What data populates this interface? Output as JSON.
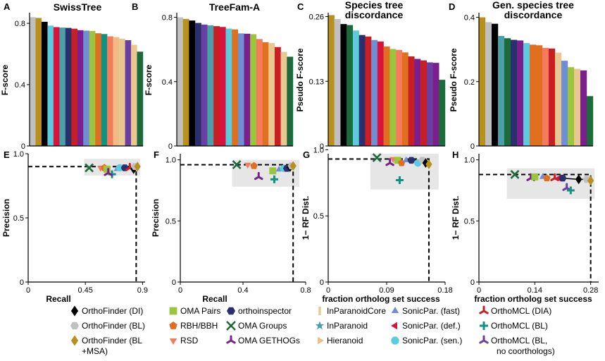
{
  "panel_labels": [
    "A",
    "B",
    "C",
    "D",
    "E",
    "F",
    "G",
    "H"
  ],
  "legend": [
    {
      "name": "OrthoFinder (DI)",
      "color": "#000000",
      "marker": "diamond"
    },
    {
      "name": "OrthoFinder (BL)",
      "color": "#c0c0c0",
      "marker": "hexagon"
    },
    {
      "name": "OrthoFinder (BL +MSA)",
      "color": "#b8901c",
      "marker": "diamond"
    },
    {
      "name": "OMA Pairs",
      "color": "#9bc53d",
      "marker": "square"
    },
    {
      "name": "RBH/BBH",
      "color": "#e07020",
      "marker": "pentagon"
    },
    {
      "name": "RSD",
      "color": "#f47c5c",
      "marker": "triangle-down"
    },
    {
      "name": "orthoinspector",
      "color": "#2a2f6e",
      "marker": "hexagon"
    },
    {
      "name": "OMA Groups",
      "color": "#1c6b3a",
      "marker": "x"
    },
    {
      "name": "OMA GETHOGs",
      "color": "#7a1f8c",
      "marker": "tri"
    },
    {
      "name": "InParanoidCore",
      "color": "#e8c890",
      "marker": "bar"
    },
    {
      "name": "InParanoid",
      "color": "#4aa0a8",
      "marker": "star"
    },
    {
      "name": "Hieranoid",
      "color": "#f0bc84",
      "marker": "triangle-right"
    },
    {
      "name": "SonicPar. (fast)",
      "color": "#6e8fd4",
      "marker": "triangle-up"
    },
    {
      "name": "SonicPar. (def.)",
      "color": "#d8143c",
      "marker": "triangle-left"
    },
    {
      "name": "SonicPar. (sen.)",
      "color": "#5ccbe0",
      "marker": "circle"
    },
    {
      "name": "OrthoMCL (DIA)",
      "color": "#c81e24",
      "marker": "tri"
    },
    {
      "name": "OrthoMCL (BL)",
      "color": "#129080",
      "marker": "plus"
    },
    {
      "name": "OrthoMCL (BL, no coorthologs)",
      "color": "#6a3fa0",
      "marker": "tri"
    }
  ],
  "chart_data": [
    {
      "type": "bar",
      "panel": "A",
      "title": "SwissTree",
      "ylabel": "F-score",
      "ylim": [
        0,
        0.86
      ],
      "yticks": [
        "0",
        "0.4",
        "0.8"
      ],
      "ytick_values": [
        0,
        0.4,
        0.8
      ],
      "bars": [
        {
          "method": "OrthoFinder (BL)",
          "value": 0.84
        },
        {
          "method": "OrthoFinder (BL +MSA)",
          "value": 0.835
        },
        {
          "method": "OrthoFinder (DI)",
          "value": 0.81
        },
        {
          "method": "SonicPar. (sen.)",
          "value": 0.785
        },
        {
          "method": "SonicPar. (def.)",
          "value": 0.775
        },
        {
          "method": "InParanoid",
          "value": 0.772
        },
        {
          "method": "orthoinspector",
          "value": 0.77
        },
        {
          "method": "OrthoMCL (DIA)",
          "value": 0.765
        },
        {
          "method": "OMA GETHOGs",
          "value": 0.755
        },
        {
          "method": "SonicPar. (fast)",
          "value": 0.752
        },
        {
          "method": "OMA Pairs",
          "value": 0.75
        },
        {
          "method": "RBH/BBH",
          "value": 0.735
        },
        {
          "method": "OrthoMCL (BL)",
          "value": 0.73
        },
        {
          "method": "RSD",
          "value": 0.715
        },
        {
          "method": "Hieranoid",
          "value": 0.71
        },
        {
          "method": "InParanoidCore",
          "value": 0.7
        },
        {
          "method": "OrthoMCL (BL, no coorthologs)",
          "value": 0.69
        },
        {
          "method": "InParanoidCore",
          "value": 0.66
        },
        {
          "method": "OMA Groups",
          "value": 0.615
        }
      ]
    },
    {
      "type": "bar",
      "panel": "B",
      "title": "TreeFam-A",
      "ylabel": "F-score",
      "ylim": [
        0,
        0.82
      ],
      "yticks": [
        "0",
        "0.4",
        "0.8"
      ],
      "ytick_values": [
        0,
        0.4,
        0.8
      ],
      "bars": [
        {
          "method": "OrthoFinder (BL)",
          "value": 0.8
        },
        {
          "method": "OrthoFinder (BL +MSA)",
          "value": 0.79
        },
        {
          "method": "OrthoFinder (DI)",
          "value": 0.78
        },
        {
          "method": "orthoinspector",
          "value": 0.765
        },
        {
          "method": "OrthoMCL (BL, no coorthologs)",
          "value": 0.755
        },
        {
          "method": "InParanoid",
          "value": 0.75
        },
        {
          "method": "OrthoMCL (DIA)",
          "value": 0.745
        },
        {
          "method": "SonicPar. (def.)",
          "value": 0.74
        },
        {
          "method": "SonicPar. (sen.)",
          "value": 0.73
        },
        {
          "method": "RBH/BBH",
          "value": 0.725
        },
        {
          "method": "SonicPar. (fast)",
          "value": 0.7
        },
        {
          "method": "OMA GETHOGs",
          "value": 0.698
        },
        {
          "method": "OMA Pairs",
          "value": 0.695
        },
        {
          "method": "RSD",
          "value": 0.665
        },
        {
          "method": "RBH/BBH",
          "value": 0.645
        },
        {
          "method": "InParanoidCore",
          "value": 0.64
        },
        {
          "method": "OrthoMCL (DIA)",
          "value": 0.615
        },
        {
          "method": "InParanoidCore",
          "value": 0.585
        },
        {
          "method": "OMA Groups",
          "value": 0.555
        }
      ]
    },
    {
      "type": "bar",
      "panel": "C",
      "title": "Species tree discordance",
      "ylabel": "Pseudo F-score",
      "ylim": [
        0,
        0.265
      ],
      "yticks": [
        "0",
        "0.13",
        "0.26"
      ],
      "ytick_values": [
        0,
        0.13,
        0.26
      ],
      "bars": [
        {
          "method": "OrthoFinder (BL +MSA)",
          "value": 0.263
        },
        {
          "method": "OrthoFinder (BL)",
          "value": 0.255
        },
        {
          "method": "OrthoFinder (DI)",
          "value": 0.245
        },
        {
          "method": "OMA Groups",
          "value": 0.243
        },
        {
          "method": "SonicPar. (sen.)",
          "value": 0.232
        },
        {
          "method": "orthoinspector",
          "value": 0.223
        },
        {
          "method": "OrthoMCL (DIA)",
          "value": 0.22
        },
        {
          "method": "SonicPar. (fast)",
          "value": 0.213
        },
        {
          "method": "SonicPar. (def.)",
          "value": 0.21
        },
        {
          "method": "RBH/BBH",
          "value": 0.2
        },
        {
          "method": "OMA Pairs",
          "value": 0.195
        },
        {
          "method": "RSD",
          "value": 0.193
        },
        {
          "method": "RBH/BBH",
          "value": 0.188
        },
        {
          "method": "OrthoMCL (DIA)",
          "value": 0.18
        },
        {
          "method": "OMA GETHOGs",
          "value": 0.175
        },
        {
          "method": "OrthoMCL (DIA)",
          "value": 0.172
        },
        {
          "method": "OrthoMCL (BL, no coorthologs)",
          "value": 0.168
        },
        {
          "method": "OMA GETHOGs",
          "value": 0.167
        },
        {
          "method": "OMA Groups",
          "value": 0.133
        }
      ]
    },
    {
      "type": "bar",
      "panel": "D",
      "title": "Gen. species tree discordance",
      "ylabel": "Pseudo F-score",
      "ylim": [
        0,
        0.41
      ],
      "yticks": [
        "0",
        "0.2",
        "0.4"
      ],
      "ytick_values": [
        0,
        0.2,
        0.4
      ],
      "bars": [
        {
          "method": "OrthoFinder (BL +MSA)",
          "value": 0.4
        },
        {
          "method": "OrthoFinder (BL)",
          "value": 0.385
        },
        {
          "method": "OrthoFinder (DI)",
          "value": 0.38
        },
        {
          "method": "InParanoid",
          "value": 0.342
        },
        {
          "method": "OMA Groups",
          "value": 0.335
        },
        {
          "method": "orthoinspector",
          "value": 0.33
        },
        {
          "method": "OMA GETHOGs",
          "value": 0.328
        },
        {
          "method": "SonicPar. (sen.)",
          "value": 0.32
        },
        {
          "method": "RBH/BBH",
          "value": 0.315
        },
        {
          "method": "RBH/BBH",
          "value": 0.313
        },
        {
          "method": "RSD",
          "value": 0.305
        },
        {
          "method": "OrthoMCL (DIA)",
          "value": 0.303
        },
        {
          "method": "InParanoidCore",
          "value": 0.29
        },
        {
          "method": "SonicPar. (fast)",
          "value": 0.265
        },
        {
          "method": "OMA Pairs",
          "value": 0.245
        },
        {
          "method": "InParanoidCore",
          "value": 0.24
        },
        {
          "method": "OMA GETHOGs",
          "value": 0.235
        },
        {
          "method": "OMA Groups",
          "value": 0.155
        }
      ]
    },
    {
      "type": "scatter",
      "panel": "E",
      "xlabel": "Recall",
      "ylabel": "Precision",
      "xlim": [
        0,
        0.92
      ],
      "ylim": [
        0,
        1.0
      ],
      "xticks": [
        "0",
        "0.45",
        "0.9"
      ],
      "xtick_values": [
        0,
        0.45,
        0.9
      ],
      "yticks": [
        "0",
        "0.5",
        "1.0"
      ],
      "ytick_values": [
        0,
        0.5,
        1.0
      ],
      "ref": {
        "x": 0.85,
        "y": 0.9
      },
      "box": {
        "x0": 0.44,
        "x1": 0.88,
        "y0": 0.83,
        "y1": 0.96
      },
      "points": [
        {
          "marker": "x",
          "color": "#1c6b3a",
          "x": 0.48,
          "y": 0.89
        },
        {
          "marker": "triangle-down",
          "color": "#f47c5c",
          "x": 0.57,
          "y": 0.89
        },
        {
          "marker": "pentagon",
          "color": "#e07020",
          "x": 0.6,
          "y": 0.89
        },
        {
          "marker": "square",
          "color": "#9bc53d",
          "x": 0.62,
          "y": 0.88
        },
        {
          "marker": "plus",
          "color": "#129080",
          "x": 0.66,
          "y": 0.84
        },
        {
          "marker": "tri",
          "color": "#7a1f8c",
          "x": 0.63,
          "y": 0.85
        },
        {
          "marker": "triangle-up",
          "color": "#6e8fd4",
          "x": 0.7,
          "y": 0.88
        },
        {
          "marker": "circle",
          "color": "#5ccbe0",
          "x": 0.72,
          "y": 0.89
        },
        {
          "marker": "hexagon",
          "color": "#2a2f6e",
          "x": 0.76,
          "y": 0.89
        },
        {
          "marker": "tri",
          "color": "#c81e24",
          "x": 0.8,
          "y": 0.89
        },
        {
          "marker": "diamond",
          "color": "#000000",
          "x": 0.83,
          "y": 0.88
        },
        {
          "marker": "hexagon",
          "color": "#c0c0c0",
          "x": 0.84,
          "y": 0.9
        },
        {
          "marker": "diamond",
          "color": "#b8901c",
          "x": 0.86,
          "y": 0.9
        }
      ]
    },
    {
      "type": "scatter",
      "panel": "F",
      "xlabel": "Recall",
      "ylabel": "Precision",
      "xlim": [
        0,
        0.8
      ],
      "ylim": [
        0,
        1.05
      ],
      "xticks": [
        "0",
        "0.4",
        "0.8"
      ],
      "xtick_values": [
        0,
        0.4,
        0.8
      ],
      "yticks": [
        "0",
        "0.5",
        "1.0"
      ],
      "ytick_values": [
        0,
        0.5,
        1.0
      ],
      "ref": {
        "x": 0.72,
        "y": 0.96
      },
      "box": {
        "x0": 0.33,
        "x1": 0.76,
        "y0": 0.78,
        "y1": 1.0
      },
      "points": [
        {
          "marker": "x",
          "color": "#1c6b3a",
          "x": 0.36,
          "y": 0.96
        },
        {
          "marker": "triangle-down",
          "color": "#f47c5c",
          "x": 0.43,
          "y": 0.96
        },
        {
          "marker": "pentagon",
          "color": "#e07020",
          "x": 0.47,
          "y": 0.95
        },
        {
          "marker": "tri",
          "color": "#7a1f8c",
          "x": 0.5,
          "y": 0.86
        },
        {
          "marker": "square",
          "color": "#9bc53d",
          "x": 0.59,
          "y": 0.91
        },
        {
          "marker": "plus",
          "color": "#129080",
          "x": 0.6,
          "y": 0.84
        },
        {
          "marker": "triangle-up",
          "color": "#6e8fd4",
          "x": 0.63,
          "y": 0.92
        },
        {
          "marker": "circle",
          "color": "#5ccbe0",
          "x": 0.66,
          "y": 0.93
        },
        {
          "marker": "hexagon",
          "color": "#2a2f6e",
          "x": 0.68,
          "y": 0.93
        },
        {
          "marker": "diamond",
          "color": "#000000",
          "x": 0.7,
          "y": 0.94
        },
        {
          "marker": "hexagon",
          "color": "#c0c0c0",
          "x": 0.71,
          "y": 0.95
        },
        {
          "marker": "diamond",
          "color": "#b8901c",
          "x": 0.72,
          "y": 0.95
        }
      ]
    },
    {
      "type": "scatter",
      "panel": "G",
      "xlabel": "fraction ortholog set success",
      "ylabel": "1− RF Dist.",
      "xlim": [
        0,
        0.18
      ],
      "ylim": [
        0,
        0.97
      ],
      "xticks": [
        "0",
        "0.09",
        "0.18"
      ],
      "xtick_values": [
        0,
        0.09,
        0.18
      ],
      "yticks": [
        "0",
        "0.5",
        "1.0"
      ],
      "ytick_values": [
        0,
        0.5,
        1.0
      ],
      "ref": {
        "x": 0.155,
        "y": 0.93
      },
      "box": {
        "x0": 0.065,
        "x1": 0.17,
        "y0": 0.7,
        "y1": 0.97
      },
      "points": [
        {
          "marker": "x",
          "color": "#1c6b3a",
          "x": 0.075,
          "y": 0.94
        },
        {
          "marker": "tri",
          "color": "#7a1f8c",
          "x": 0.095,
          "y": 0.9
        },
        {
          "marker": "triangle-down",
          "color": "#f47c5c",
          "x": 0.1,
          "y": 0.93
        },
        {
          "marker": "square",
          "color": "#9bc53d",
          "x": 0.107,
          "y": 0.92
        },
        {
          "marker": "plus",
          "color": "#129080",
          "x": 0.11,
          "y": 0.77
        },
        {
          "marker": "pentagon",
          "color": "#e07020",
          "x": 0.113,
          "y": 0.9
        },
        {
          "marker": "triangle-up",
          "color": "#6e8fd4",
          "x": 0.12,
          "y": 0.92
        },
        {
          "marker": "hexagon",
          "color": "#2a2f6e",
          "x": 0.128,
          "y": 0.92
        },
        {
          "marker": "circle",
          "color": "#5ccbe0",
          "x": 0.138,
          "y": 0.9
        },
        {
          "marker": "hexagon",
          "color": "#c0c0c0",
          "x": 0.145,
          "y": 0.92
        },
        {
          "marker": "diamond",
          "color": "#000000",
          "x": 0.15,
          "y": 0.9
        },
        {
          "marker": "diamond",
          "color": "#b8901c",
          "x": 0.155,
          "y": 0.89
        }
      ]
    },
    {
      "type": "scatter",
      "panel": "H",
      "xlabel": "fraction ortholog set success",
      "ylabel": "1− RF Dist.",
      "xlim": [
        0,
        0.3
      ],
      "ylim": [
        0,
        1.05
      ],
      "xticks": [
        "0",
        "0.14",
        "0.28"
      ],
      "xtick_values": [
        0,
        0.14,
        0.28
      ],
      "yticks": [
        "0",
        "0.5",
        "1.0"
      ],
      "ytick_values": [
        0,
        0.5,
        1.0
      ],
      "ref": {
        "x": 0.28,
        "y": 0.88
      },
      "box": {
        "x0": 0.07,
        "x1": 0.29,
        "y0": 0.68,
        "y1": 0.93
      },
      "points": [
        {
          "marker": "x",
          "color": "#1c6b3a",
          "x": 0.09,
          "y": 0.88
        },
        {
          "marker": "tri",
          "color": "#7a1f8c",
          "x": 0.13,
          "y": 0.85
        },
        {
          "marker": "square",
          "color": "#9bc53d",
          "x": 0.14,
          "y": 0.86
        },
        {
          "marker": "triangle-up",
          "color": "#6e8fd4",
          "x": 0.16,
          "y": 0.86
        },
        {
          "marker": "pentagon",
          "color": "#e07020",
          "x": 0.17,
          "y": 0.85
        },
        {
          "marker": "tri",
          "color": "#c81e24",
          "x": 0.19,
          "y": 0.85
        },
        {
          "marker": "triangle-left",
          "color": "#d8143c",
          "x": 0.2,
          "y": 0.85
        },
        {
          "marker": "hexagon",
          "color": "#2a2f6e",
          "x": 0.21,
          "y": 0.85
        },
        {
          "marker": "tri",
          "color": "#6a3fa0",
          "x": 0.22,
          "y": 0.77
        },
        {
          "marker": "plus",
          "color": "#129080",
          "x": 0.23,
          "y": 0.75
        },
        {
          "marker": "diamond",
          "color": "#000000",
          "x": 0.25,
          "y": 0.84
        },
        {
          "marker": "hexagon",
          "color": "#c0c0c0",
          "x": 0.27,
          "y": 0.84
        },
        {
          "marker": "diamond",
          "color": "#b8901c",
          "x": 0.28,
          "y": 0.83
        }
      ]
    }
  ]
}
